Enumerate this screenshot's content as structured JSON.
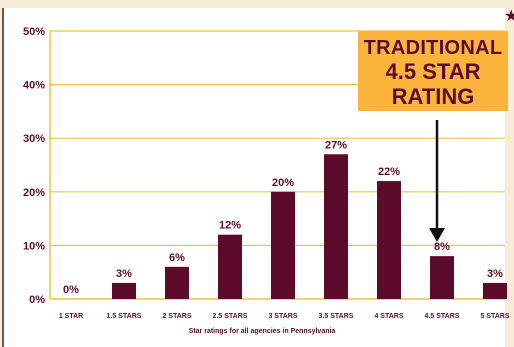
{
  "chart_data": {
    "type": "bar",
    "categories": [
      "1 STAR",
      "1.5 STARS",
      "2 STARS",
      "2.5 STARS",
      "3 STARS",
      "3.5 STARS",
      "4 STARS",
      "4.5 STARS",
      "5 STARS"
    ],
    "values": [
      0,
      3,
      6,
      12,
      20,
      27,
      22,
      8,
      3
    ],
    "value_labels": [
      "0%",
      "3%",
      "6%",
      "12%",
      "20%",
      "27%",
      "22%",
      "8%",
      "3%"
    ],
    "ylim": [
      0,
      50
    ],
    "yticks": [
      0,
      10,
      20,
      30,
      40,
      50
    ],
    "ytick_labels": [
      "0%",
      "10%",
      "20%",
      "30%",
      "40%",
      "50%"
    ],
    "xlabel": "Star ratings for all agencies in Pennsylvania",
    "ylabel": "",
    "grid": "horizontal",
    "colors": {
      "bar": "#5c0b2b",
      "grid": "#f2c23c",
      "axis_text": "#5c0b2b",
      "background": "#ffffff"
    }
  },
  "callout": {
    "line1": "TRADITIONAL",
    "line2": "4.5 STAR",
    "line3": "RATING",
    "color": "#fbb33b"
  }
}
